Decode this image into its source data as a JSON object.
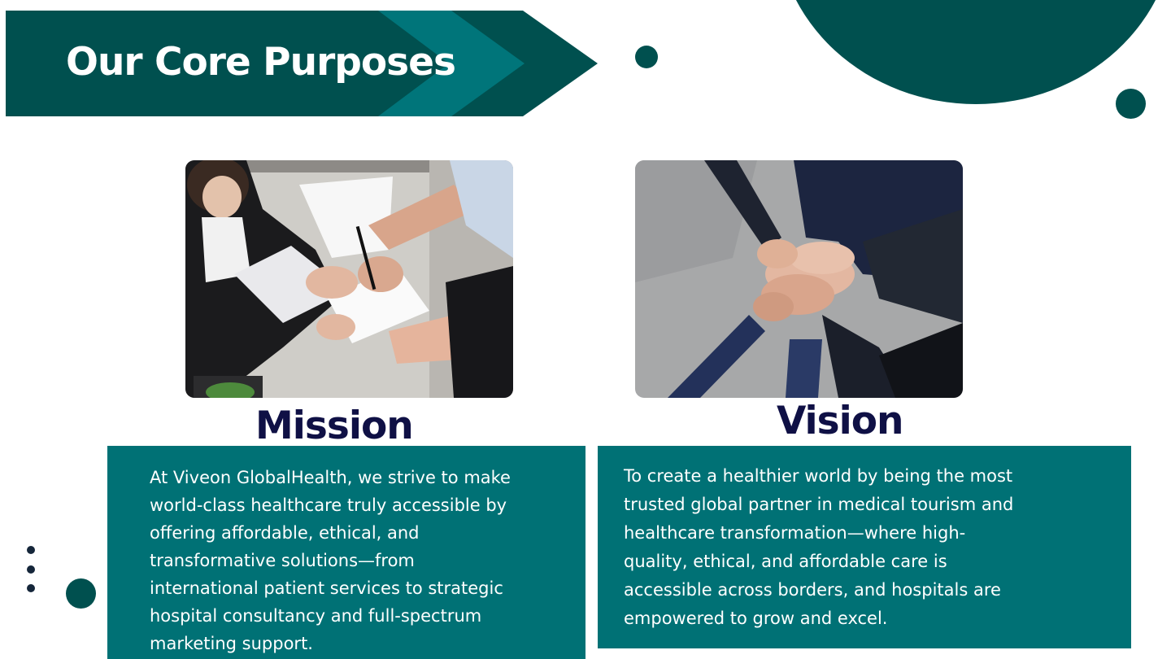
{
  "header": {
    "title": "Our Core Purposes"
  },
  "colors": {
    "dark_teal": "#00504f",
    "mid_teal": "#007175",
    "navy_text": "#0f1045"
  },
  "mission": {
    "heading": "Mission",
    "image_alt": "business people reviewing documents at a table",
    "text": "At Viveon GlobalHealth, we strive to make\nworld-class healthcare truly accessible by\noffering affordable, ethical, and\ntransformative solutions—from\ninternational patient services to strategic\nhospital consultancy and full-spectrum\nmarketing support."
  },
  "vision": {
    "heading": "Vision",
    "image_alt": "team members stacking hands together",
    "text": "To create a healthier world by being the most\ntrusted global partner in medical tourism and\nhealthcare transformation—where high-\nquality, ethical, and affordable care is\naccessible across borders, and hospitals are\nempowered to grow and excel."
  }
}
